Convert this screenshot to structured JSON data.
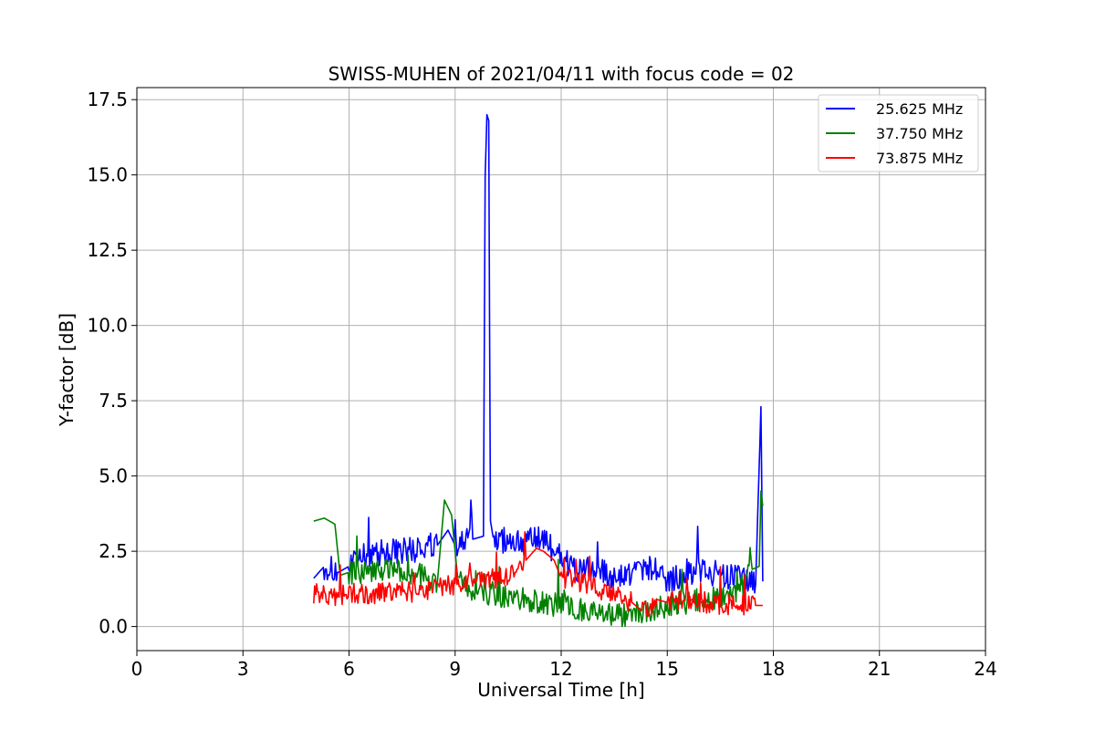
{
  "chart_data": {
    "type": "line",
    "title": "SWISS-MUHEN of 2021/04/11 with focus code = 02",
    "xlabel": "Universal Time [h]",
    "ylabel": "Y-factor [dB]",
    "xlim": [
      0,
      24
    ],
    "ylim": [
      -0.8,
      17.9
    ],
    "xticks": [
      0,
      3,
      6,
      9,
      12,
      15,
      18,
      21,
      24
    ],
    "xtick_labels": [
      "0",
      "3",
      "6",
      "9",
      "12",
      "15",
      "18",
      "21",
      "24"
    ],
    "yticks": [
      0,
      2.5,
      5,
      7.5,
      10,
      12.5,
      15,
      17.5
    ],
    "ytick_labels": [
      "0.0",
      "2.5",
      "5.0",
      "7.5",
      "10.0",
      "12.5",
      "15.0",
      "17.5"
    ],
    "grid": true,
    "legend_position": "top-right",
    "series": [
      {
        "name": "25.625 MHz",
        "color": "#0000ff",
        "x": [
          5.0,
          5.3,
          5.7,
          6.0,
          6.5,
          7.0,
          7.5,
          8.0,
          8.5,
          8.8,
          9.0,
          9.5,
          9.8,
          9.85,
          9.9,
          9.95,
          10.0,
          10.1,
          10.5,
          11.0,
          11.5,
          12.0,
          12.5,
          13.0,
          13.5,
          14.0,
          14.5,
          15.0,
          15.5,
          16.0,
          16.5,
          17.0,
          17.5,
          17.65,
          17.7
        ],
        "y": [
          1.6,
          2.0,
          1.8,
          2.0,
          2.4,
          2.5,
          2.5,
          2.6,
          2.7,
          3.2,
          2.7,
          2.9,
          3.0,
          15.0,
          17.0,
          16.8,
          3.5,
          2.8,
          2.9,
          2.8,
          2.9,
          2.3,
          1.8,
          1.9,
          1.6,
          1.8,
          2.0,
          1.5,
          1.8,
          1.9,
          1.7,
          1.6,
          1.4,
          7.3,
          1.5
        ]
      },
      {
        "name": "37.750 MHz",
        "color": "#008000",
        "x": [
          5.0,
          5.3,
          5.6,
          5.75,
          6.0,
          6.5,
          7.0,
          7.5,
          8.0,
          8.5,
          8.7,
          8.9,
          9.1,
          9.5,
          10.0,
          10.5,
          11.0,
          11.5,
          12.0,
          12.5,
          13.0,
          13.5,
          14.0,
          14.5,
          15.0,
          15.5,
          16.0,
          16.5,
          17.0,
          17.4,
          17.6,
          17.65,
          17.7
        ],
        "y": [
          3.5,
          3.6,
          3.4,
          1.7,
          1.8,
          1.8,
          1.9,
          1.8,
          1.7,
          1.5,
          4.2,
          3.7,
          1.3,
          1.2,
          1.1,
          1.0,
          0.9,
          0.8,
          0.7,
          0.6,
          0.5,
          0.4,
          0.4,
          0.5,
          0.7,
          0.8,
          0.9,
          1.0,
          1.1,
          1.9,
          2.0,
          4.5,
          4.0
        ]
      },
      {
        "name": "73.875 MHz",
        "color": "#ff0000",
        "x": [
          5.0,
          5.5,
          6.0,
          6.5,
          7.0,
          7.5,
          8.0,
          8.5,
          9.0,
          9.5,
          10.0,
          10.5,
          11.0,
          11.3,
          11.5,
          11.8,
          12.0,
          12.5,
          13.0,
          13.5,
          14.0,
          14.3,
          14.7,
          15.0,
          15.5,
          16.0,
          16.5,
          17.0,
          17.5,
          17.7
        ],
        "y": [
          1.1,
          1.0,
          1.1,
          1.1,
          1.1,
          1.2,
          1.1,
          1.3,
          1.4,
          1.5,
          1.6,
          1.7,
          2.2,
          2.6,
          2.5,
          2.2,
          1.6,
          1.5,
          1.3,
          1.0,
          0.8,
          0.5,
          0.9,
          0.8,
          0.9,
          0.8,
          0.7,
          0.7,
          0.7,
          0.7
        ]
      }
    ]
  }
}
